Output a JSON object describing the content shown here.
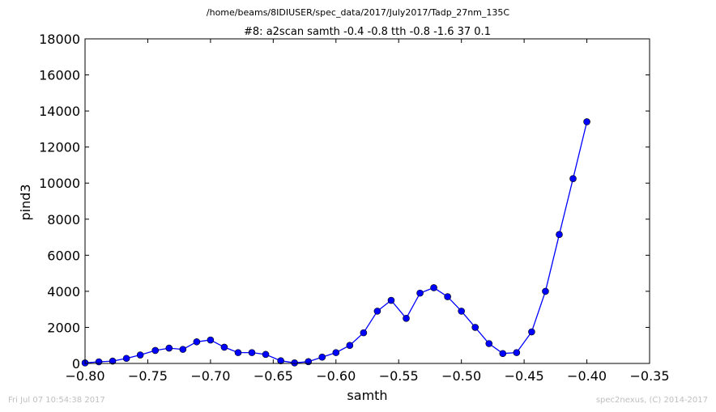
{
  "header": {
    "path": "/home/beams/8IDIUSER/spec_data/2017/July2017/Tadp_27nm_135C"
  },
  "footer": {
    "timestamp": "Fri Jul 07 10:54:38 2017",
    "credit": "spec2nexus, (C) 2014-2017"
  },
  "chart_data": {
    "type": "line",
    "title": "#8: a2scan  samth -0.4 -0.8  tth -0.8 -1.6  37 0.1",
    "xlabel": "samth",
    "ylabel": "pind3",
    "xlim": [
      -0.8,
      -0.35
    ],
    "ylim": [
      0,
      18000
    ],
    "xticks": [
      -0.8,
      -0.75,
      -0.7,
      -0.65,
      -0.6,
      -0.55,
      -0.5,
      -0.45,
      -0.4,
      -0.35
    ],
    "xtick_labels": [
      "−0.80",
      "−0.75",
      "−0.70",
      "−0.65",
      "−0.60",
      "−0.55",
      "−0.50",
      "−0.45",
      "−0.40",
      "−0.35"
    ],
    "yticks": [
      0,
      2000,
      4000,
      6000,
      8000,
      10000,
      12000,
      14000,
      16000,
      18000
    ],
    "ytick_labels": [
      "0",
      "2000",
      "4000",
      "6000",
      "8000",
      "10000",
      "12000",
      "14000",
      "16000",
      "18000"
    ],
    "grid": false,
    "color": "#0000ff",
    "x": [
      -0.8,
      -0.789,
      -0.778,
      -0.767,
      -0.756,
      -0.744,
      -0.733,
      -0.722,
      -0.711,
      -0.7,
      -0.689,
      -0.678,
      -0.667,
      -0.656,
      -0.644,
      -0.633,
      -0.622,
      -0.611,
      -0.6,
      -0.589,
      -0.578,
      -0.567,
      -0.556,
      -0.544,
      -0.533,
      -0.522,
      -0.511,
      -0.5,
      -0.489,
      -0.478,
      -0.467,
      -0.456,
      -0.444,
      -0.433,
      -0.422,
      -0.411,
      -0.4
    ],
    "y": [
      30,
      90,
      130,
      280,
      470,
      720,
      850,
      780,
      1200,
      1300,
      900,
      600,
      600,
      500,
      150,
      30,
      100,
      350,
      600,
      1000,
      1700,
      2900,
      3500,
      2500,
      3900,
      4200,
      3700,
      2900,
      2000,
      1100,
      550,
      600,
      1750,
      4000,
      7150,
      10250,
      13400
    ]
  }
}
